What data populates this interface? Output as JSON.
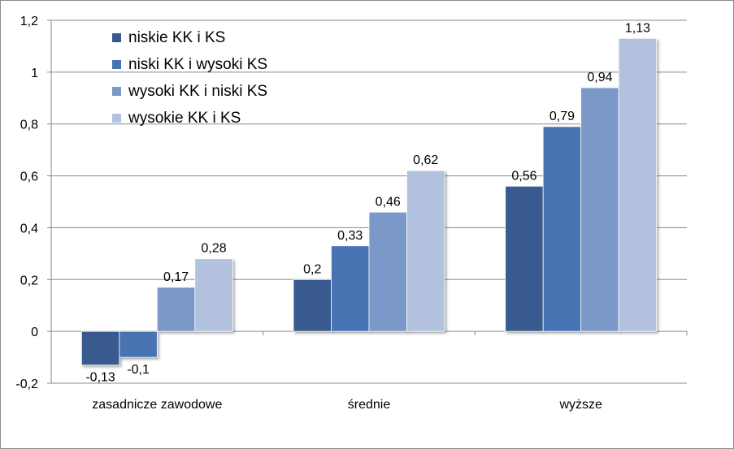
{
  "chart_data": {
    "type": "bar",
    "categories": [
      "zasadnicze zawodowe",
      "średnie",
      "wyższe"
    ],
    "series": [
      {
        "name": "niskie KK i KS",
        "color": "#375a8e",
        "values": [
          -0.13,
          0.2,
          0.56
        ],
        "labels": [
          "-0,13",
          "0,2",
          "0,56"
        ]
      },
      {
        "name": "niski KK i wysoki KS",
        "color": "#4673b2",
        "values": [
          -0.1,
          0.33,
          0.79
        ],
        "labels": [
          "-0,1",
          "0,33",
          "0,79"
        ]
      },
      {
        "name": "wysoki KK i niski KS",
        "color": "#7a98c8",
        "values": [
          0.17,
          0.46,
          0.94
        ],
        "labels": [
          "0,17",
          "0,46",
          "0,94"
        ]
      },
      {
        "name": "wysokie KK i KS",
        "color": "#b2c1dd",
        "values": [
          0.28,
          0.62,
          1.13
        ],
        "labels": [
          "0,28",
          "0,62",
          "1,13"
        ]
      }
    ],
    "ylim": [
      -0.2,
      1.2
    ],
    "yticks": [
      -0.2,
      0,
      0.2,
      0.4,
      0.6,
      0.8,
      1,
      1.2
    ],
    "ytick_labels": [
      "-0,2",
      "0",
      "0,2",
      "0,4",
      "0,6",
      "0,8",
      "1",
      "1,2"
    ],
    "grid": true,
    "legend_position": "top-left",
    "title": "",
    "xlabel": "",
    "ylabel": ""
  }
}
